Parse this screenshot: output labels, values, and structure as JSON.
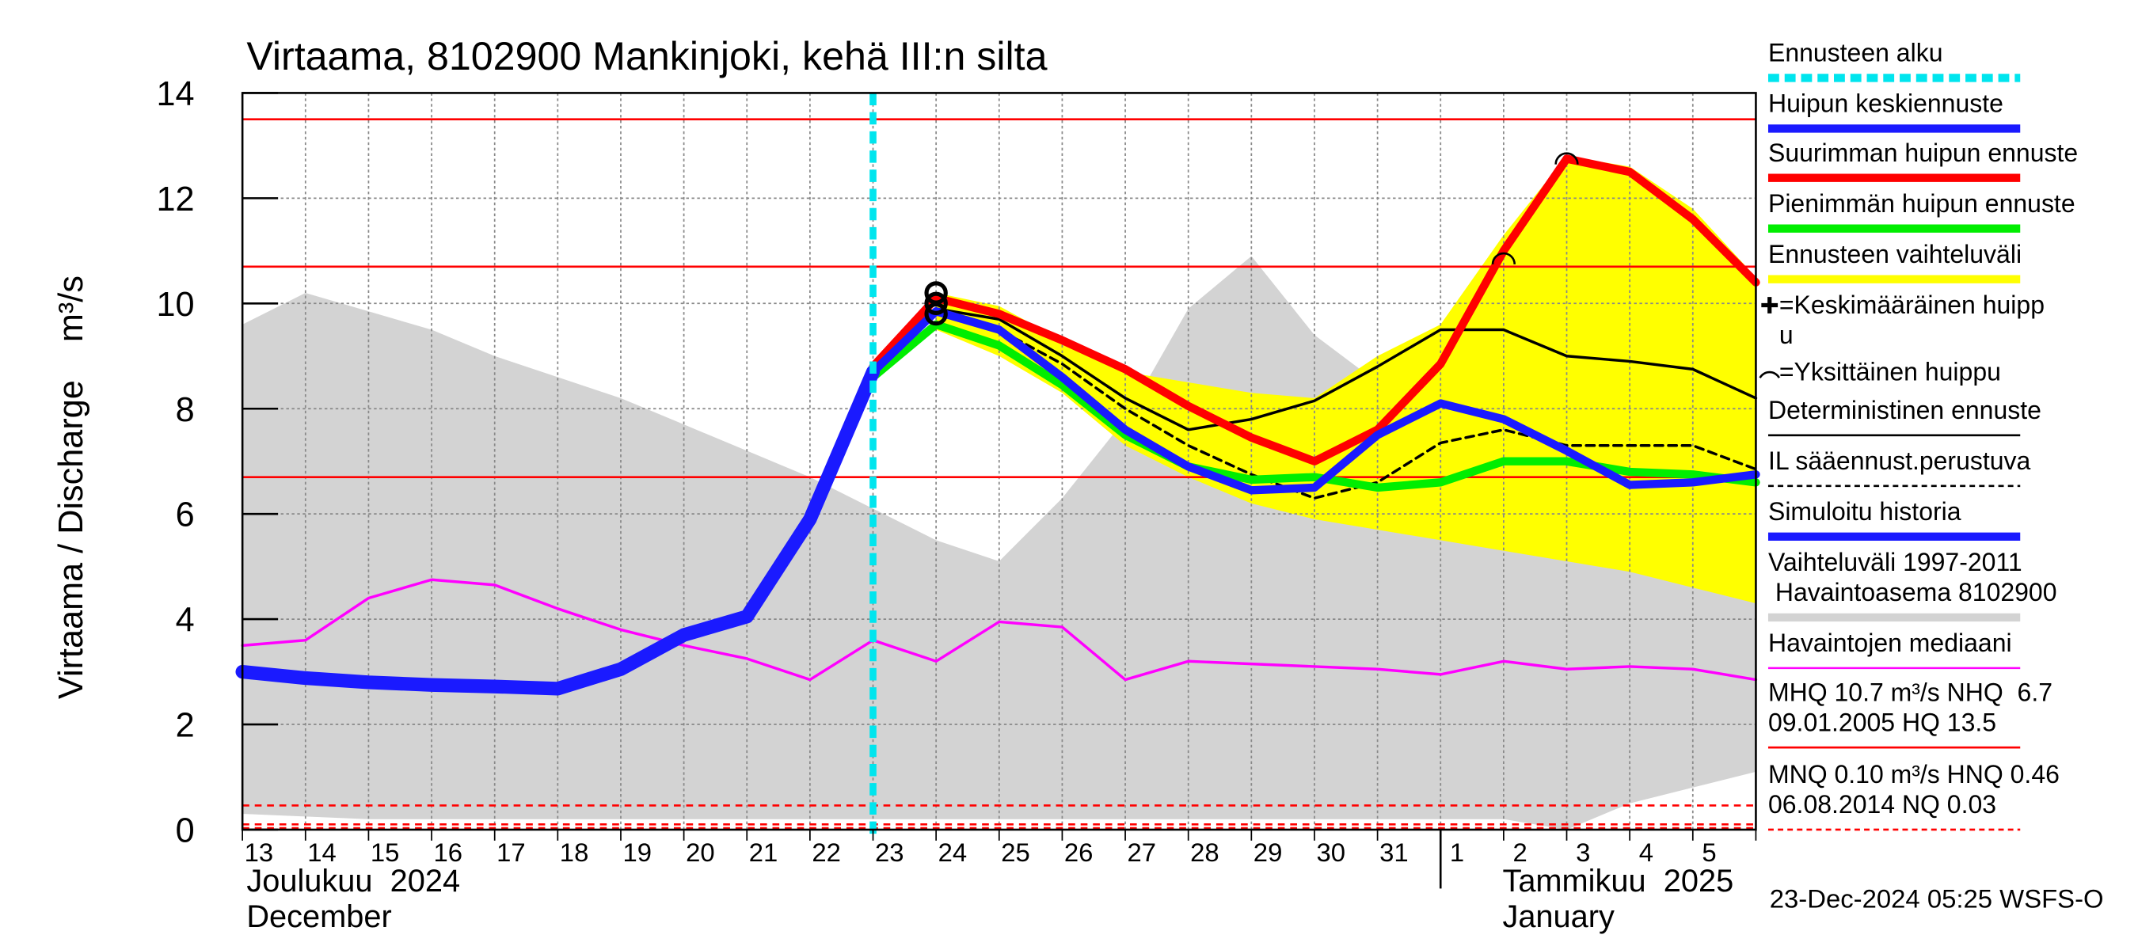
{
  "chart_data": {
    "type": "line",
    "title": "Virtaama, 8102900 Mankinjoki, kehä III:n silta",
    "ylabel": "Virtaama / Discharge    m³/s",
    "footer": "23-Dec-2024 05:25 WSFS-O",
    "month_labels": [
      [
        "Joulukuu  2024",
        "December"
      ],
      [
        "Tammikuu  2025",
        "January"
      ]
    ],
    "categories": [
      "13",
      "14",
      "15",
      "16",
      "17",
      "18",
      "19",
      "20",
      "21",
      "22",
      "23",
      "24",
      "25",
      "26",
      "27",
      "28",
      "29",
      "30",
      "31",
      "1",
      "2",
      "3",
      "4",
      "5",
      null
    ],
    "ylim": [
      0,
      14
    ],
    "yticks": [
      0,
      2,
      4,
      6,
      8,
      10,
      12,
      14
    ],
    "grid": true,
    "forecast_start": 10,
    "bands": [
      {
        "color": "#d3d3d3",
        "upper": [
          9.6,
          10.2,
          9.85,
          9.5,
          9.0,
          8.6,
          8.2,
          7.7,
          7.2,
          6.7,
          6.1,
          5.5,
          5.1,
          6.3,
          7.8,
          9.9,
          10.9,
          9.4,
          8.5,
          7.5,
          7.7,
          9.2,
          9.1,
          7.3,
          7.8
        ],
        "lower": [
          0.3,
          0.25,
          0.2,
          0.2,
          0.2,
          0.2,
          0.2,
          0.2,
          0.2,
          0.2,
          0.2,
          0.2,
          0.2,
          0.2,
          0.2,
          0.2,
          0.2,
          0.2,
          0.2,
          0.2,
          0.2,
          0.0,
          0.5,
          0.8,
          1.1
        ]
      },
      {
        "color": "#ffff00",
        "upper": [
          null,
          null,
          null,
          null,
          null,
          null,
          null,
          null,
          null,
          null,
          null,
          10.2,
          9.95,
          9.3,
          8.7,
          8.5,
          8.3,
          8.2,
          9.0,
          9.6,
          11.3,
          12.8,
          12.6,
          11.8,
          10.5
        ],
        "lower": [
          null,
          null,
          null,
          null,
          null,
          null,
          null,
          null,
          null,
          null,
          null,
          9.5,
          9.0,
          8.3,
          7.3,
          6.7,
          6.2,
          5.9,
          5.7,
          5.5,
          5.3,
          5.1,
          4.9,
          4.6,
          4.3
        ]
      }
    ],
    "hlines": [
      {
        "value": 13.5,
        "color": "#ff0000",
        "dash": false
      },
      {
        "value": 10.7,
        "color": "#ff0000",
        "dash": false
      },
      {
        "value": 6.7,
        "color": "#ff0000",
        "dash": false
      },
      {
        "value": 0.46,
        "color": "#ff0000",
        "dash": true
      },
      {
        "value": 0.1,
        "color": "#ff0000",
        "dash": true
      },
      {
        "value": 0.03,
        "color": "#ff0000",
        "dash": true
      }
    ],
    "series": [
      {
        "color": "#ff00ff",
        "width": 2,
        "dash": false,
        "values": [
          3.5,
          3.6,
          4.4,
          4.75,
          4.65,
          4.2,
          3.8,
          3.5,
          3.25,
          2.85,
          3.6,
          3.2,
          3.95,
          3.85,
          2.85,
          3.2,
          3.15,
          3.1,
          3.05,
          2.95,
          3.2,
          3.05,
          3.1,
          3.05,
          2.85
        ]
      },
      {
        "color": "#000000",
        "width": 2,
        "dash": false,
        "values": [
          null,
          null,
          null,
          null,
          null,
          null,
          null,
          null,
          null,
          null,
          8.8,
          9.9,
          9.7,
          9.0,
          8.2,
          7.6,
          7.8,
          8.15,
          8.8,
          9.5,
          9.5,
          9.0,
          8.9,
          8.75,
          8.2
        ]
      },
      {
        "color": "#000000",
        "width": 2,
        "dash": true,
        "values": [
          null,
          null,
          null,
          null,
          null,
          null,
          null,
          null,
          null,
          null,
          null,
          9.8,
          9.5,
          8.85,
          8.0,
          7.3,
          6.75,
          6.3,
          6.6,
          7.35,
          7.6,
          7.3,
          7.3,
          7.3,
          6.85
        ]
      },
      {
        "color": "#00ee00",
        "width": 6,
        "dash": false,
        "values": [
          null,
          null,
          null,
          null,
          null,
          null,
          null,
          null,
          null,
          null,
          8.6,
          9.6,
          9.2,
          8.45,
          7.5,
          6.9,
          6.65,
          6.7,
          6.5,
          6.6,
          7.0,
          7.0,
          6.8,
          6.75,
          6.6
        ]
      },
      {
        "color": "#ff0000",
        "width": 6,
        "dash": false,
        "values": [
          null,
          null,
          null,
          null,
          null,
          null,
          null,
          null,
          null,
          null,
          8.8,
          10.1,
          9.8,
          9.3,
          8.75,
          8.05,
          7.45,
          7.0,
          7.6,
          8.85,
          11.0,
          12.75,
          12.5,
          11.6,
          10.4
        ]
      },
      {
        "color": "#1a1aff",
        "width": 6,
        "dash": false,
        "values": [
          null,
          null,
          null,
          null,
          null,
          null,
          null,
          null,
          null,
          null,
          8.7,
          9.85,
          9.5,
          8.6,
          7.6,
          6.9,
          6.45,
          6.5,
          7.5,
          8.1,
          7.8,
          7.2,
          6.55,
          6.6,
          6.75
        ]
      },
      {
        "color": "#1a1aff",
        "width": 10,
        "dash": false,
        "values": [
          3.0,
          2.88,
          2.8,
          2.75,
          2.72,
          2.68,
          3.05,
          3.7,
          4.05,
          5.9,
          8.7,
          null,
          null,
          null,
          null,
          null,
          null,
          null,
          null,
          null,
          null,
          null,
          null,
          null,
          null
        ]
      }
    ],
    "mean_peaks": [
      {
        "x": 11,
        "y": 9.8
      },
      {
        "x": 11,
        "y": 10.0
      },
      {
        "x": 11,
        "y": 10.2
      }
    ],
    "single_peaks": [
      {
        "x": 20,
        "y": 10.9
      },
      {
        "x": 21,
        "y": 12.8
      }
    ],
    "legend": [
      {
        "lines": [
          "Ennusteen alku"
        ],
        "color": "#00e5ee",
        "style": "dash-thick"
      },
      {
        "lines": [
          "Huipun keskiennuste"
        ],
        "color": "#1a1aff",
        "style": "thick"
      },
      {
        "lines": [
          "Suurimman huipun ennuste"
        ],
        "color": "#ff0000",
        "style": "thick"
      },
      {
        "lines": [
          "Pienimmän huipun ennuste"
        ],
        "color": "#00ee00",
        "style": "thick"
      },
      {
        "lines": [
          "Ennusteen vaihteluväli"
        ],
        "color": "#ffff00",
        "style": "thick"
      },
      {
        "lines": [
          "=Keskimääräinen huipp",
          "u"
        ],
        "color": "#000000",
        "style": "plus"
      },
      {
        "lines": [
          "=Yksittäinen huippu"
        ],
        "color": "#000000",
        "style": "arc"
      },
      {
        "lines": [
          "Deterministinen ennuste"
        ],
        "color": "#000000",
        "style": "thin"
      },
      {
        "lines": [
          "IL sääennust.perustuva"
        ],
        "color": "#000000",
        "style": "dash"
      },
      {
        "lines": [
          "Simuloitu historia"
        ],
        "color": "#1a1aff",
        "style": "thick"
      },
      {
        "lines": [
          "Vaihteluväli 1997-2011",
          " Havaintoasema 8102900"
        ],
        "color": "#d3d3d3",
        "style": "thick"
      },
      {
        "lines": [
          "Havaintojen mediaani"
        ],
        "color": "#ff00ff",
        "style": "thin"
      },
      {
        "lines": [
          "MHQ 10.7 m³/s NHQ  6.7",
          "09.01.2005 HQ 13.5"
        ],
        "color": "#ff0000",
        "style": "thin"
      },
      {
        "lines": [
          "MNQ 0.10 m³/s HNQ 0.46",
          "06.08.2014 NQ 0.03"
        ],
        "color": "#ff0000",
        "style": "dash"
      }
    ]
  }
}
